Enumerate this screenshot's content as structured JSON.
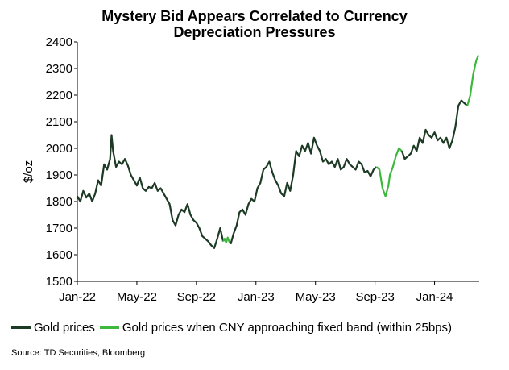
{
  "chart_data": {
    "type": "line",
    "title_lines": [
      "Mystery Bid Appears Correlated to Currency",
      "Depreciation Pressures"
    ],
    "ylabel": "$/oz",
    "xlabel": "",
    "ylim": [
      1500,
      2400
    ],
    "yticks": [
      1500,
      1600,
      1700,
      1800,
      1900,
      2000,
      2100,
      2200,
      2300,
      2400
    ],
    "xlim": [
      0,
      27
    ],
    "xticks": [
      {
        "label": "Jan-22",
        "x": 0
      },
      {
        "label": "May-22",
        "x": 4
      },
      {
        "label": "Sep-22",
        "x": 8
      },
      {
        "label": "Jan-23",
        "x": 12
      },
      {
        "label": "May-23",
        "x": 16
      },
      {
        "label": "Sep-23",
        "x": 20
      },
      {
        "label": "Jan-24",
        "x": 24
      }
    ],
    "x_unit": "months since Jan-22",
    "series": [
      {
        "name": "Gold prices",
        "color": "#1c3a24",
        "points": [
          [
            0.0,
            1820
          ],
          [
            0.2,
            1800
          ],
          [
            0.4,
            1840
          ],
          [
            0.6,
            1815
          ],
          [
            0.8,
            1830
          ],
          [
            1.0,
            1800
          ],
          [
            1.2,
            1830
          ],
          [
            1.4,
            1880
          ],
          [
            1.6,
            1860
          ],
          [
            1.8,
            1940
          ],
          [
            2.0,
            1920
          ],
          [
            2.2,
            1960
          ],
          [
            2.3,
            2050
          ],
          [
            2.4,
            1990
          ],
          [
            2.6,
            1930
          ],
          [
            2.8,
            1950
          ],
          [
            3.0,
            1940
          ],
          [
            3.2,
            1960
          ],
          [
            3.4,
            1935
          ],
          [
            3.6,
            1900
          ],
          [
            3.8,
            1880
          ],
          [
            4.0,
            1860
          ],
          [
            4.2,
            1890
          ],
          [
            4.4,
            1850
          ],
          [
            4.6,
            1840
          ],
          [
            4.8,
            1855
          ],
          [
            5.0,
            1850
          ],
          [
            5.2,
            1870
          ],
          [
            5.4,
            1840
          ],
          [
            5.6,
            1850
          ],
          [
            5.8,
            1830
          ],
          [
            6.0,
            1810
          ],
          [
            6.2,
            1790
          ],
          [
            6.4,
            1730
          ],
          [
            6.6,
            1710
          ],
          [
            6.8,
            1750
          ],
          [
            7.0,
            1770
          ],
          [
            7.2,
            1760
          ],
          [
            7.4,
            1790
          ],
          [
            7.6,
            1750
          ],
          [
            7.8,
            1730
          ],
          [
            8.0,
            1720
          ],
          [
            8.2,
            1700
          ],
          [
            8.4,
            1670
          ],
          [
            8.6,
            1660
          ],
          [
            8.8,
            1650
          ],
          [
            9.0,
            1635
          ],
          [
            9.2,
            1625
          ],
          [
            9.4,
            1660
          ],
          [
            9.6,
            1700
          ],
          [
            9.8,
            1650
          ]
        ]
      },
      {
        "name": "Gold prices when CNY approaching fixed band (within 25bps)",
        "color": "#3cb83c",
        "points": [
          [
            9.8,
            1650
          ],
          [
            9.9,
            1660
          ],
          [
            10.0,
            1645
          ],
          [
            10.1,
            1665
          ],
          [
            10.2,
            1650
          ],
          [
            10.3,
            1640
          ]
        ]
      },
      {
        "name": "Gold prices",
        "color": "#1c3a24",
        "points": [
          [
            10.3,
            1640
          ],
          [
            10.5,
            1680
          ],
          [
            10.7,
            1710
          ],
          [
            10.9,
            1760
          ],
          [
            11.1,
            1770
          ],
          [
            11.3,
            1750
          ],
          [
            11.5,
            1790
          ],
          [
            11.7,
            1810
          ],
          [
            11.9,
            1800
          ],
          [
            12.1,
            1850
          ],
          [
            12.3,
            1870
          ],
          [
            12.5,
            1920
          ],
          [
            12.7,
            1930
          ],
          [
            12.9,
            1950
          ],
          [
            13.1,
            1910
          ],
          [
            13.3,
            1880
          ],
          [
            13.5,
            1860
          ],
          [
            13.7,
            1830
          ],
          [
            13.9,
            1820
          ],
          [
            14.1,
            1870
          ],
          [
            14.3,
            1840
          ],
          [
            14.5,
            1900
          ],
          [
            14.7,
            1990
          ],
          [
            14.9,
            1970
          ],
          [
            15.1,
            2010
          ],
          [
            15.3,
            1990
          ],
          [
            15.5,
            2020
          ],
          [
            15.7,
            1980
          ],
          [
            15.9,
            2040
          ],
          [
            16.1,
            2010
          ],
          [
            16.3,
            1990
          ],
          [
            16.5,
            1950
          ],
          [
            16.7,
            1960
          ],
          [
            16.9,
            1940
          ],
          [
            17.1,
            1950
          ],
          [
            17.3,
            1930
          ],
          [
            17.5,
            1960
          ],
          [
            17.7,
            1920
          ],
          [
            17.9,
            1930
          ],
          [
            18.1,
            1960
          ],
          [
            18.3,
            1940
          ],
          [
            18.5,
            1930
          ],
          [
            18.7,
            1920
          ],
          [
            18.9,
            1950
          ],
          [
            19.1,
            1940
          ],
          [
            19.3,
            1910
          ],
          [
            19.5,
            1915
          ],
          [
            19.7,
            1895
          ],
          [
            19.9,
            1920
          ],
          [
            20.1,
            1930
          ]
        ]
      },
      {
        "name": "Gold prices when CNY approaching fixed band (within 25bps)",
        "color": "#3cb83c",
        "points": [
          [
            20.1,
            1930
          ],
          [
            20.3,
            1920
          ],
          [
            20.5,
            1850
          ],
          [
            20.7,
            1820
          ],
          [
            20.9,
            1860
          ],
          [
            21.0,
            1900
          ],
          [
            21.2,
            1930
          ],
          [
            21.4,
            1970
          ],
          [
            21.6,
            2000
          ],
          [
            21.8,
            1990
          ]
        ]
      },
      {
        "name": "Gold prices",
        "color": "#1c3a24",
        "points": [
          [
            21.8,
            1990
          ],
          [
            22.0,
            1960
          ],
          [
            22.2,
            1970
          ],
          [
            22.4,
            1980
          ],
          [
            22.6,
            2010
          ],
          [
            22.8,
            1990
          ],
          [
            23.0,
            2040
          ],
          [
            23.2,
            2020
          ],
          [
            23.4,
            2070
          ],
          [
            23.6,
            2050
          ],
          [
            23.8,
            2040
          ],
          [
            24.0,
            2060
          ],
          [
            24.2,
            2030
          ],
          [
            24.4,
            2040
          ],
          [
            24.6,
            2020
          ],
          [
            24.8,
            2040
          ],
          [
            25.0,
            2000
          ],
          [
            25.2,
            2030
          ],
          [
            25.4,
            2080
          ],
          [
            25.6,
            2160
          ],
          [
            25.8,
            2180
          ],
          [
            26.0,
            2170
          ],
          [
            26.2,
            2160
          ]
        ]
      },
      {
        "name": "Gold prices when CNY approaching fixed band (within 25bps)",
        "color": "#3cb83c",
        "points": [
          [
            26.2,
            2160
          ],
          [
            26.4,
            2200
          ],
          [
            26.6,
            2280
          ],
          [
            26.8,
            2330
          ],
          [
            26.95,
            2350
          ]
        ]
      }
    ],
    "legend": [
      {
        "label": "Gold prices",
        "color": "#1c3a24"
      },
      {
        "label": "Gold prices when CNY approaching fixed band (within 25bps)",
        "color": "#3cb83c"
      }
    ],
    "legend_position": "bottom-left",
    "grid": false
  },
  "source_note": "Source: TD Securities, Bloomberg"
}
